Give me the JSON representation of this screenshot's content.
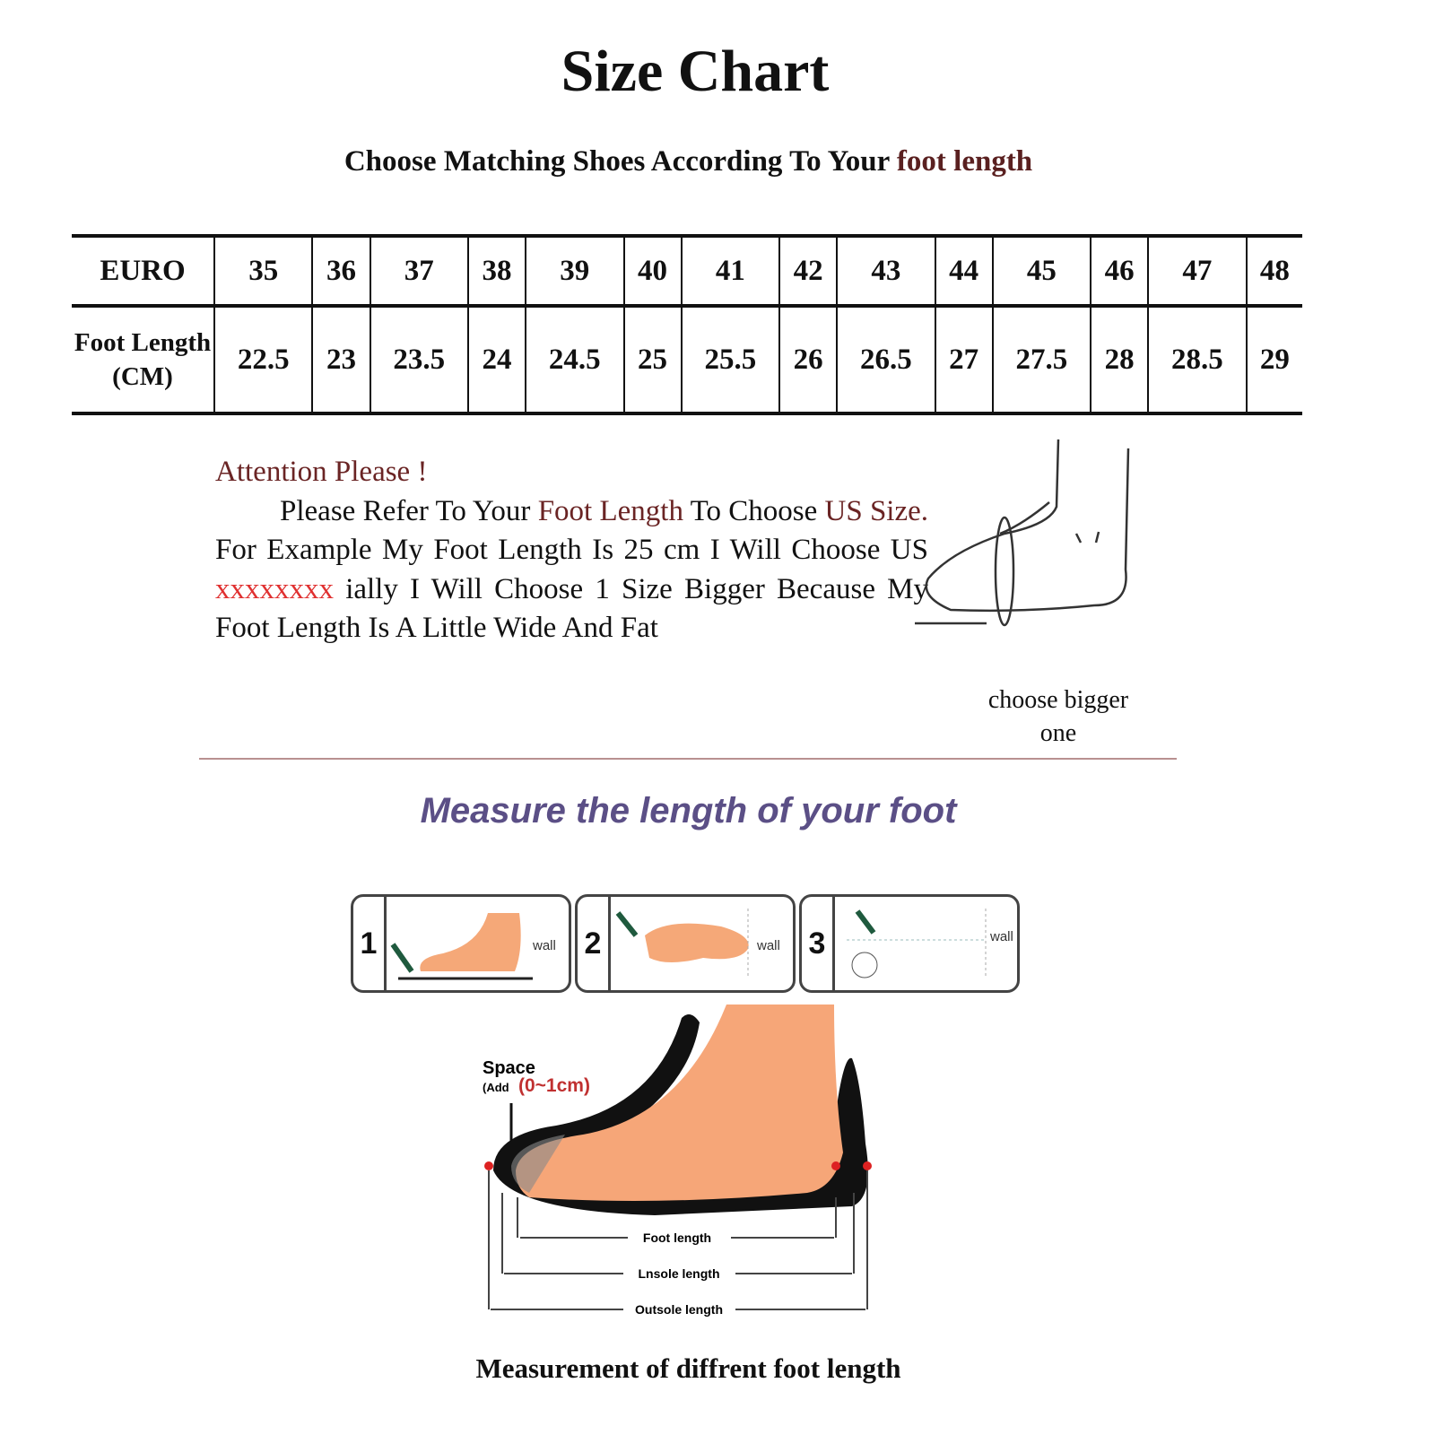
{
  "title": "Size Chart",
  "subtitle": {
    "text": "Choose Matching Shoes According To Your ",
    "highlight": "foot length"
  },
  "table": {
    "row_headers": [
      "EURO",
      "Foot Length (CM)"
    ],
    "euro": [
      "35",
      "36",
      "37",
      "38",
      "39",
      "40",
      "41",
      "42",
      "43",
      "44",
      "45",
      "46",
      "47",
      "48"
    ],
    "foot_length_cm": [
      "22.5",
      "23",
      "23.5",
      "24",
      "24.5",
      "25",
      "25.5",
      "26",
      "26.5",
      "27",
      "27.5",
      "28",
      "28.5",
      "29"
    ]
  },
  "attention": {
    "heading": "Attention Please !",
    "p1": "Please Refer To Your ",
    "p1_hl": "Foot Length",
    "p2": " To Choose ",
    "p2_hl": "US Size.",
    "p3": " For Example My Foot Length Is 25 cm I Will Choose US ",
    "p3_xx": "xxxxxxxx",
    "p4": " ially I Will Choose 1 Size Bigger Because My Foot Length Is A Little Wide And Fat"
  },
  "choose_bigger": "choose bigger one",
  "measure_title": "Measure the length of your foot",
  "steps": [
    {
      "num": "1",
      "wall": "wall"
    },
    {
      "num": "2",
      "wall": "wall"
    },
    {
      "num": "3",
      "wall": "wall"
    }
  ],
  "diagram": {
    "space": "Space",
    "add": "(Add",
    "range": "(0~1cm)",
    "foot_length": "Foot length",
    "insole_length": "Lnsole length",
    "outsole_length": "Outsole length"
  },
  "caption": "Measurement of diffrent foot length",
  "colors": {
    "accent_red": "#6a2424",
    "measure_purple": "#5b4f86",
    "skin": "#f5a878"
  }
}
